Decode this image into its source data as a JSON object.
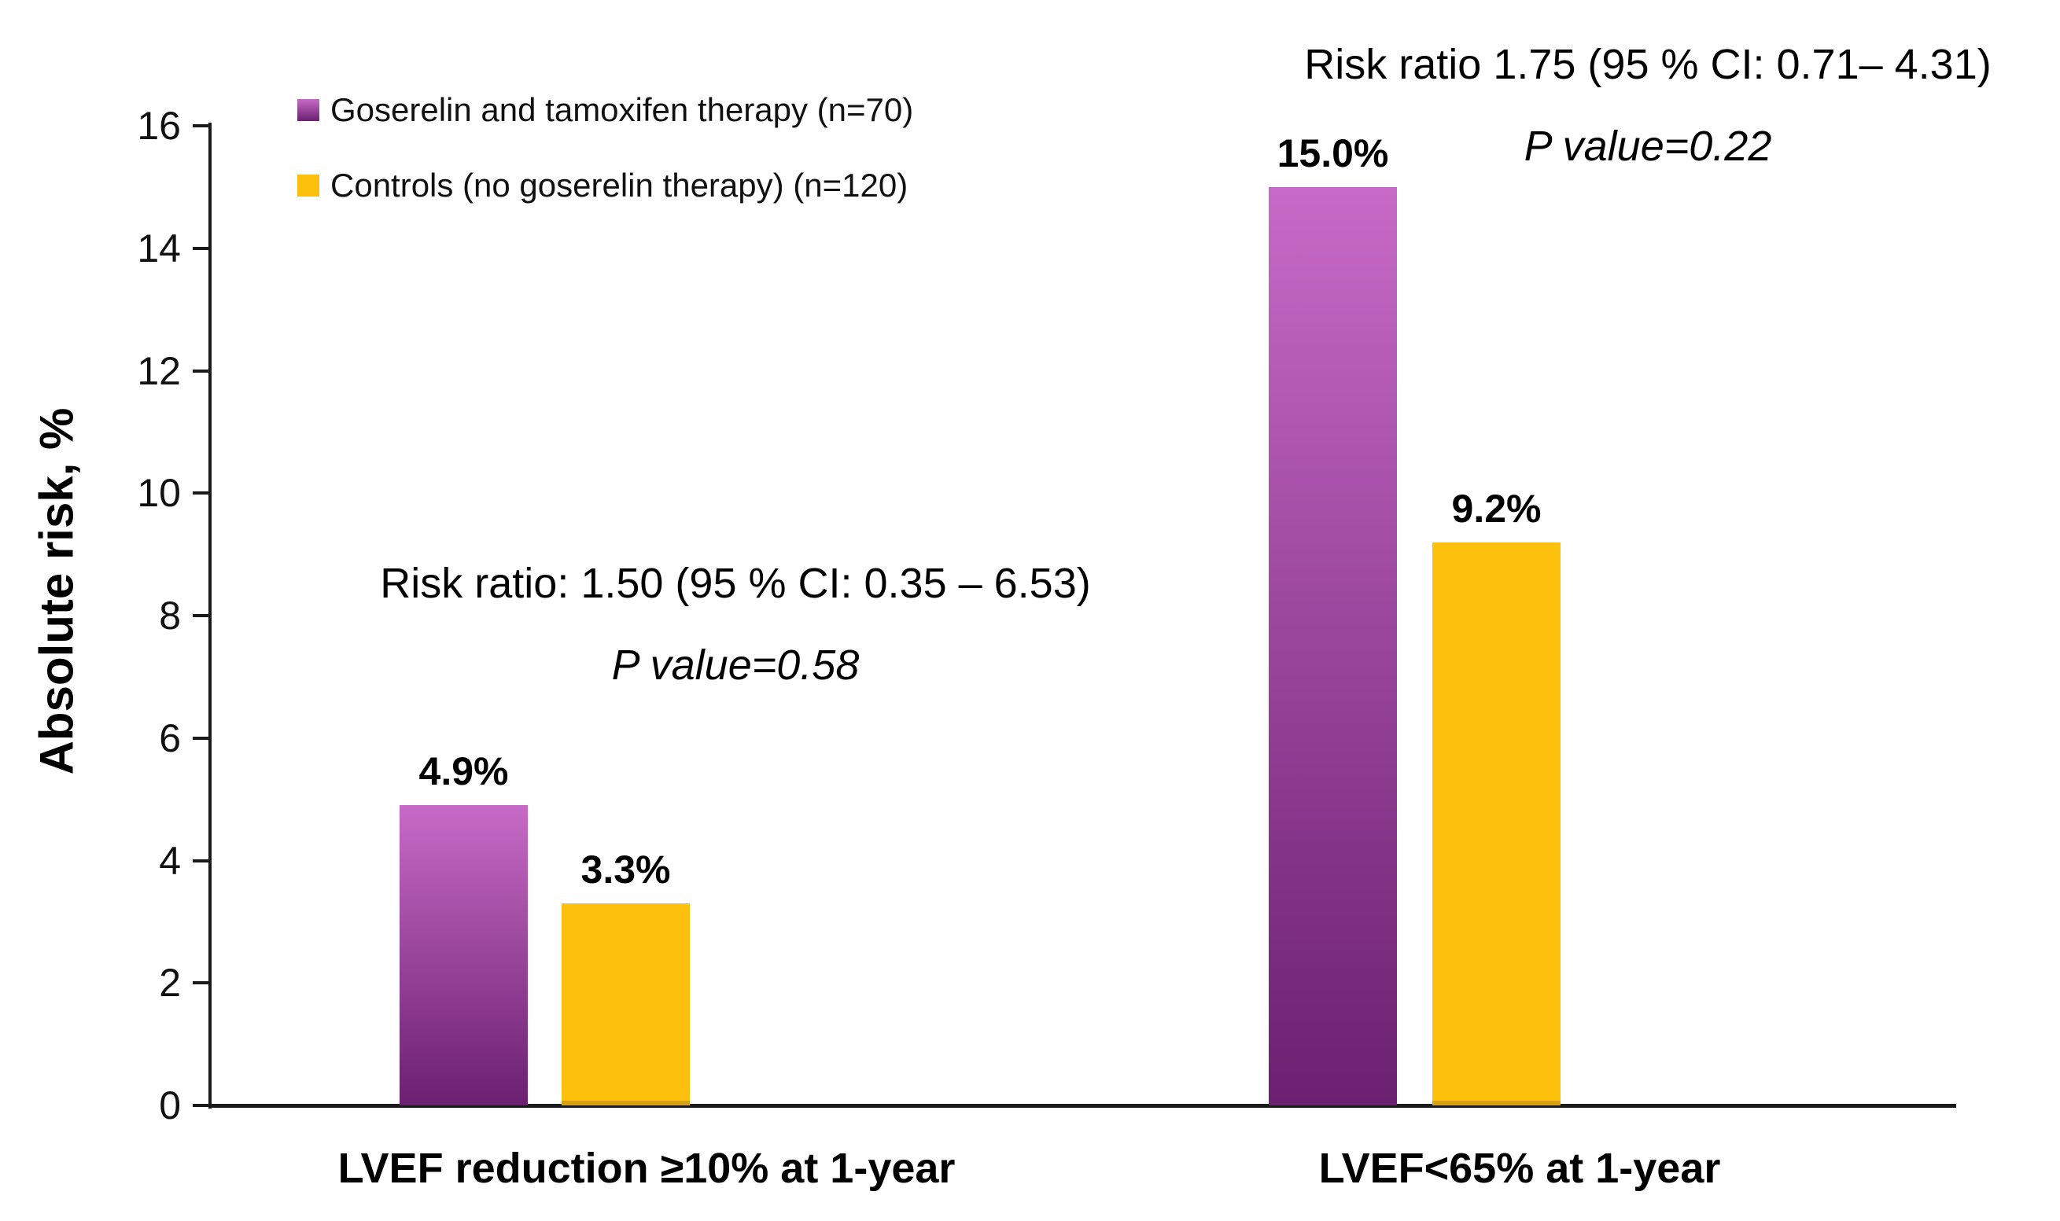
{
  "chart_data": {
    "type": "bar",
    "title": "",
    "ylabel": "Absolute risk, %",
    "xlabel": "",
    "ylim": [
      0,
      16
    ],
    "ytick_step": 2,
    "yticks": [
      "0",
      "2",
      "4",
      "6",
      "8",
      "10",
      "12",
      "14",
      "16"
    ],
    "grid": false,
    "legend_position": "top-left",
    "categories": [
      "LVEF reduction ≥10% at 1-year",
      "LVEF<65% at 1-year"
    ],
    "series": [
      {
        "name": "Goserelin and tamoxifen therapy (n=70)",
        "values": [
          4.9,
          15.0
        ],
        "data_labels": [
          "4.9%",
          "15.0%"
        ],
        "color_top": "#c76ac7",
        "color_bottom": "#6b2070"
      },
      {
        "name": "Controls (no goserelin therapy) (n=120)",
        "values": [
          3.3,
          9.2
        ],
        "data_labels": [
          "3.3%",
          "9.2%"
        ],
        "color": "#fcc00d"
      }
    ],
    "annotations": [
      {
        "line1": "Risk ratio: 1.50 (95 % CI: 0.35 – 6.53)",
        "line2": "P value=0.58"
      },
      {
        "line1": "Risk ratio 1.75 (95 % CI: 0.71– 4.31)",
        "line2": "P value=0.22"
      }
    ]
  },
  "colors": {
    "bar_goserelin_top": "#c76ac7",
    "bar_goserelin_bottom": "#6b2070",
    "bar_controls": "#fcc00d",
    "axis": "#1a1a1a",
    "text": "#111111",
    "background": "#ffffff"
  }
}
